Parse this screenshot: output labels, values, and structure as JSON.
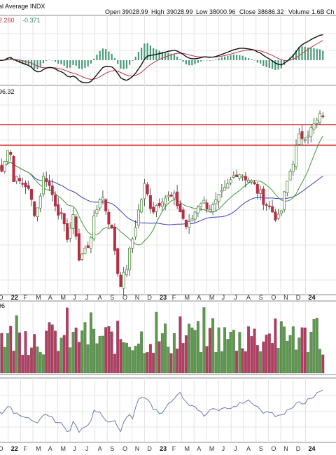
{
  "header": {
    "title": "al Average INDX",
    "open_label": "Open",
    "open_value": "39028.99",
    "high_label": "High",
    "high_value": "39028.99",
    "low_label": "Low",
    "low_value": "38000.96",
    "close_label": "Close",
    "close_value": "38686.32",
    "volume_label": "Volume",
    "volume_value": "1.6B",
    "chg_label": "Ch"
  },
  "macd_readout": {
    "value": "2.260",
    "change": "-0.371"
  },
  "price_readout": "96.32",
  "volume_readout": "96",
  "colors": {
    "up": "#4e8a3c",
    "down": "#b82e44",
    "vol_up": "#5a9a4a",
    "vol_down": "#b73a60",
    "resistance": "#d42a2a",
    "ma_fast": "#3c9a32",
    "ma_slow": "#3a3cc0",
    "macd_line": "#111111",
    "signal_line": "#c0304a",
    "histogram": "#4a9a7a",
    "osc": "#6a7ab0"
  },
  "chart_data": {
    "type": "line",
    "title": "al Average INDX",
    "x_tick_labels": [
      "D",
      "22",
      "F",
      "M",
      "A",
      "M",
      "J",
      "J",
      "A",
      "S",
      "O",
      "N",
      "D",
      "23",
      "F",
      "M",
      "A",
      "M",
      "J",
      "J",
      "A",
      "S",
      "O",
      "N",
      "D",
      "24"
    ],
    "price_series": [
      {
        "d": "2021-12",
        "c": 35500
      },
      {
        "d": "2022-01-04",
        "c": 36800
      },
      {
        "d": "2022-01",
        "c": 34800
      },
      {
        "d": "2022-02",
        "c": 34500
      },
      {
        "d": "2022-03-08",
        "c": 32700
      },
      {
        "d": "2022-03-29",
        "c": 35200
      },
      {
        "d": "2022-04",
        "c": 34100
      },
      {
        "d": "2022-05",
        "c": 32200
      },
      {
        "d": "2022-05-20",
        "c": 31300
      },
      {
        "d": "2022-06",
        "c": 32900
      },
      {
        "d": "2022-06-16",
        "c": 29900
      },
      {
        "d": "2022-07",
        "c": 31000
      },
      {
        "d": "2022-08-16",
        "c": 34100
      },
      {
        "d": "2022-09",
        "c": 31500
      },
      {
        "d": "2022-09-30",
        "c": 28700
      },
      {
        "d": "2022-10-13",
        "c": 29200
      },
      {
        "d": "2022-11",
        "c": 32800
      },
      {
        "d": "2022-12-01",
        "c": 34400
      },
      {
        "d": "2022-12-20",
        "c": 33000
      },
      {
        "d": "2023-01",
        "c": 33800
      },
      {
        "d": "2023-02",
        "c": 33700
      },
      {
        "d": "2023-03-15",
        "c": 31900
      },
      {
        "d": "2023-04",
        "c": 33600
      },
      {
        "d": "2023-05",
        "c": 33100
      },
      {
        "d": "2023-06",
        "c": 34100
      },
      {
        "d": "2023-07",
        "c": 35300
      },
      {
        "d": "2023-08",
        "c": 34800
      },
      {
        "d": "2023-09",
        "c": 33800
      },
      {
        "d": "2023-10-27",
        "c": 32400
      },
      {
        "d": "2023-11",
        "c": 34500
      },
      {
        "d": "2023-12",
        "c": 37200
      },
      {
        "d": "2024-01",
        "c": 37700
      },
      {
        "d": "2024-02",
        "c": 38700
      }
    ],
    "resistance_levels": [
      38000,
      36800
    ],
    "macd": {
      "value": 2.26,
      "change": -0.371
    },
    "volume_last": "1.6B",
    "grid": true
  }
}
